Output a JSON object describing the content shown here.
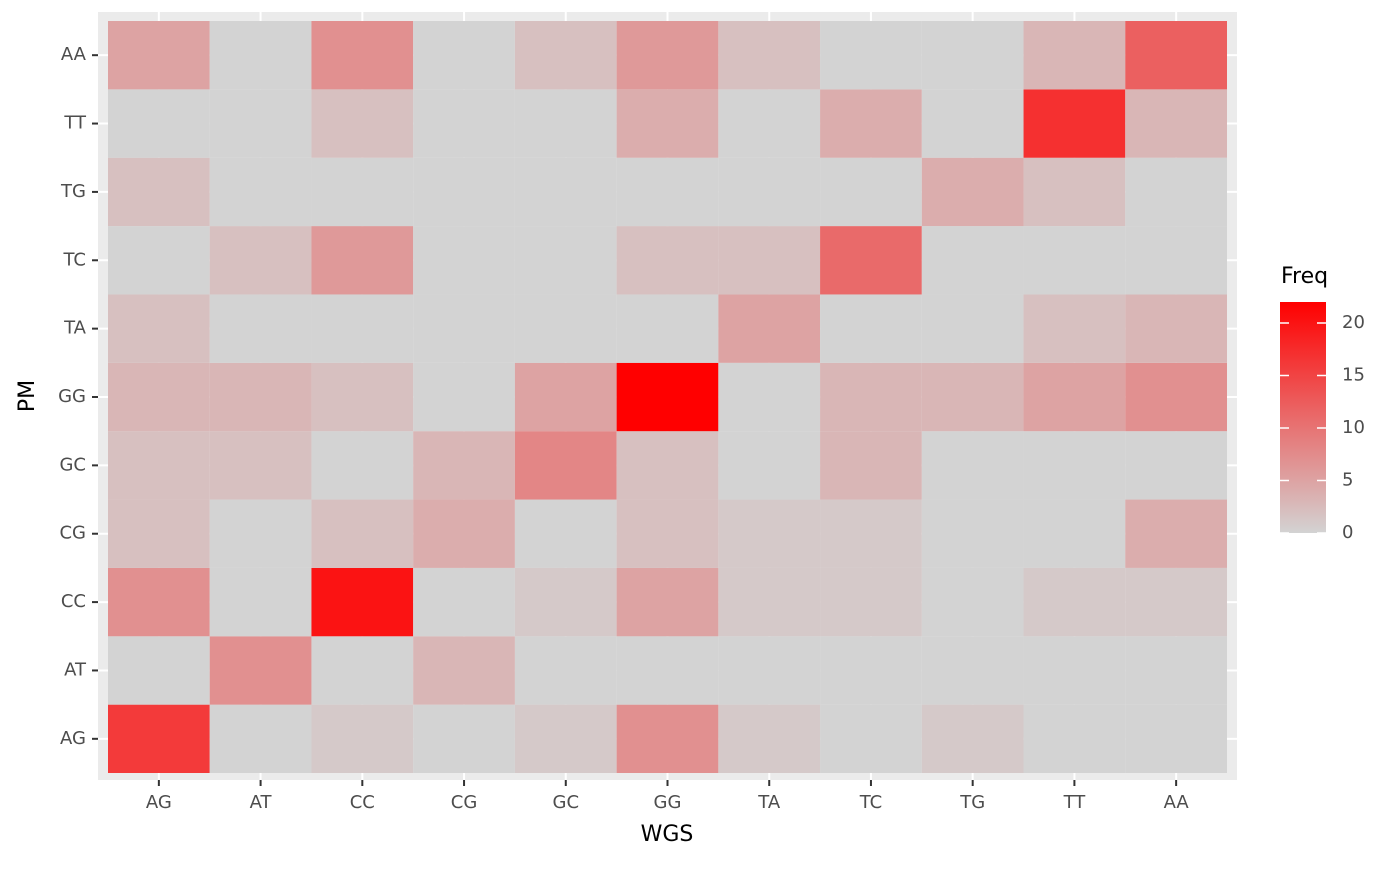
{
  "chart_data": {
    "type": "heatmap",
    "x_label": "WGS",
    "y_label": "PM",
    "x_categories": [
      "AG",
      "AT",
      "CC",
      "CG",
      "GC",
      "GG",
      "TA",
      "TC",
      "TG",
      "TT",
      "AA"
    ],
    "y_categories": [
      "AG",
      "AT",
      "CC",
      "CG",
      "GC",
      "GG",
      "TA",
      "TC",
      "TG",
      "TT",
      "AA"
    ],
    "values": [
      [
        16,
        0,
        1,
        0,
        1,
        7,
        1,
        0,
        1,
        0,
        0
      ],
      [
        0,
        7,
        0,
        3,
        0,
        0,
        0,
        0,
        0,
        0,
        0
      ],
      [
        7,
        0,
        20,
        0,
        1,
        5,
        1,
        1,
        0,
        1,
        1
      ],
      [
        2,
        0,
        2,
        4,
        0,
        2,
        1,
        1,
        0,
        0,
        4
      ],
      [
        2,
        2,
        0,
        3,
        8,
        2,
        0,
        3,
        0,
        0,
        0
      ],
      [
        3,
        3,
        2,
        0,
        5,
        22,
        0,
        3,
        3,
        5,
        7
      ],
      [
        2,
        0,
        0,
        0,
        0,
        0,
        5,
        0,
        0,
        2,
        3
      ],
      [
        0,
        2,
        6,
        0,
        0,
        2,
        2,
        11,
        0,
        0,
        0
      ],
      [
        2,
        0,
        0,
        0,
        0,
        0,
        0,
        0,
        4,
        2,
        0
      ],
      [
        0,
        0,
        2,
        0,
        0,
        4,
        0,
        4,
        0,
        17,
        3
      ],
      [
        5,
        0,
        7,
        0,
        2,
        6,
        2,
        0,
        0,
        3,
        12
      ]
    ],
    "legend_title": "Freq",
    "color_low": "#d3d3d3",
    "color_high": "#ff0000",
    "clim": [
      0,
      22
    ],
    "cticks": [
      0,
      5,
      10,
      15,
      20
    ]
  }
}
